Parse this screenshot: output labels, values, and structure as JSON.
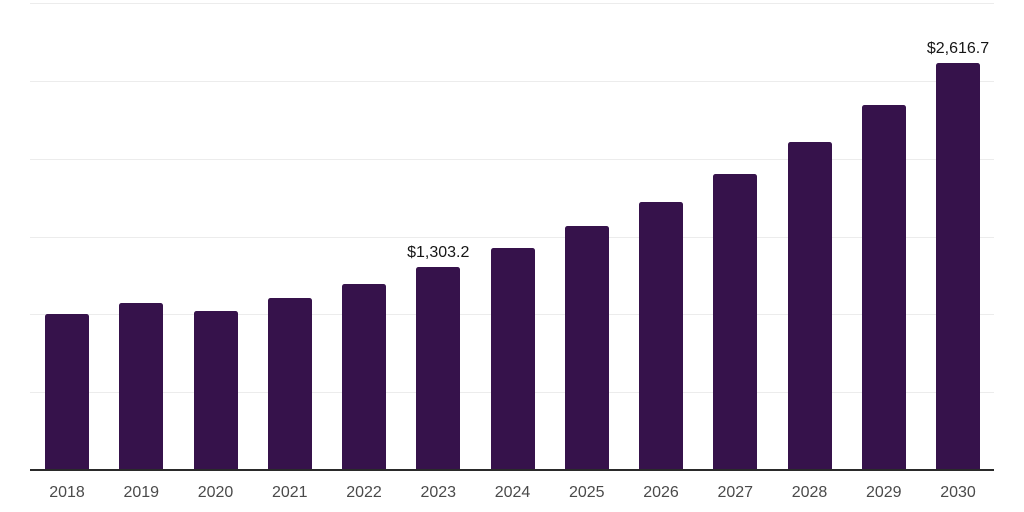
{
  "chart_data": {
    "type": "bar",
    "categories": [
      "2018",
      "2019",
      "2020",
      "2021",
      "2022",
      "2023",
      "2024",
      "2025",
      "2026",
      "2027",
      "2028",
      "2029",
      "2030"
    ],
    "values": [
      1000.4,
      1073.0,
      1024.0,
      1108.0,
      1195.0,
      1303.2,
      1429.0,
      1568.0,
      1722.0,
      1903.0,
      2104.0,
      2347.0,
      2616.7
    ],
    "annotations": [
      {
        "index": 5,
        "text": "$1,303.2"
      },
      {
        "index": 12,
        "text": "$2,616.7"
      }
    ],
    "title": "",
    "xlabel": "",
    "ylabel": "",
    "ylim": [
      0,
      3000
    ],
    "grid_step": 500,
    "grid": true,
    "legend": "none",
    "bar_color": "#36124B",
    "gridline_color": "#ececec",
    "axis_line_color": "#2a2a2a",
    "tick_label_color": "#4a4a4a",
    "data_label_color": "#161616",
    "background_color": "#ffffff"
  }
}
